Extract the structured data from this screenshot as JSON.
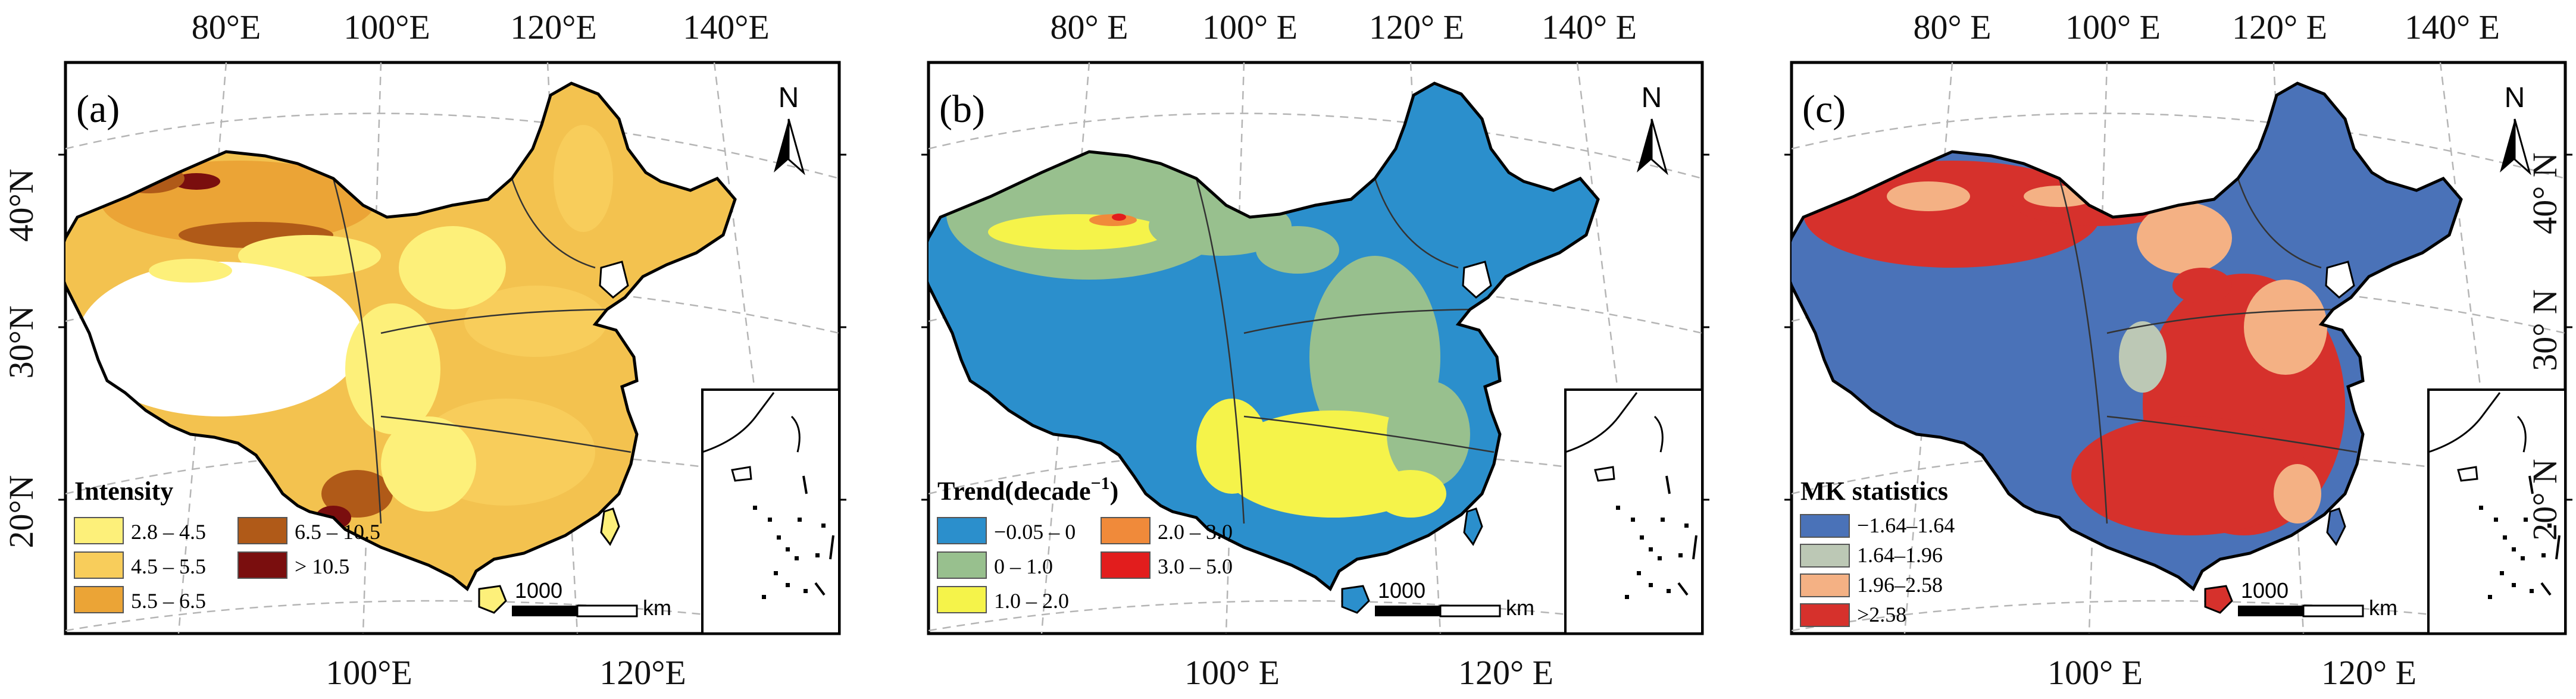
{
  "panels": [
    {
      "id": "a",
      "label": "(a)",
      "top_ticks": [
        "80°E",
        "100°E",
        "120°E",
        "140°E"
      ],
      "bottom_ticks": [
        "100°E",
        "120°E"
      ],
      "left_ticks": [
        "40°N",
        "30°N",
        "20°N"
      ],
      "right_ticks": [],
      "legend_title": "Intensity",
      "legend_title_sup": "",
      "legend_title_end": "",
      "legend": [
        {
          "label": "2.8 – 4.5",
          "color": "#fdf07a"
        },
        {
          "label": "4.5 – 5.5",
          "color": "#f8cd5b"
        },
        {
          "label": "5.5 – 6.5",
          "color": "#eba436"
        },
        {
          "label": "6.5 – 10.5",
          "color": "#b05a18"
        },
        {
          "label": "> 10.5",
          "color": "#7a0e0e"
        }
      ],
      "main_color": "#f3c24f",
      "north_label": "N",
      "scale_number": "1000",
      "scale_unit": "km"
    },
    {
      "id": "b",
      "label": "(b)",
      "top_ticks": [
        "80° E",
        "100° E",
        "120° E",
        "140° E"
      ],
      "bottom_ticks": [
        "100° E",
        "120° E"
      ],
      "left_ticks": [],
      "right_ticks": [],
      "legend_title": "Trend(decade",
      "legend_title_sup": "−1",
      "legend_title_end": ")",
      "legend": [
        {
          "label": "−0.05 – 0",
          "color": "#2b8fcc"
        },
        {
          "label": "0 – 1.0",
          "color": "#98c08e"
        },
        {
          "label": "1.0 – 2.0",
          "color": "#f5f34a"
        },
        {
          "label": "2.0 – 3.0",
          "color": "#f08a3a"
        },
        {
          "label": "3.0 – 5.0",
          "color": "#e21d1d"
        }
      ],
      "main_color": "#2b8fcc",
      "north_label": "N",
      "scale_number": "1000",
      "scale_unit": "km"
    },
    {
      "id": "c",
      "label": "(c)",
      "top_ticks": [
        "80° E",
        "100° E",
        "120° E",
        "140° E"
      ],
      "bottom_ticks": [
        "100° E",
        "120° E"
      ],
      "left_ticks": [],
      "right_ticks": [
        "40° N",
        "30° N",
        "20° N"
      ],
      "legend_title": "MK statistics",
      "legend_title_sup": "",
      "legend_title_end": "",
      "legend": [
        {
          "label": "−1.64–1.64",
          "color": "#4a72b8"
        },
        {
          "label": "1.64–1.96",
          "color": "#bcc8b5"
        },
        {
          "label": "1.96–2.58",
          "color": "#f4b184"
        },
        {
          "label": ">2.58",
          "color": "#d6312c"
        }
      ],
      "main_color": "#4a72b8",
      "north_label": "N",
      "scale_number": "1000",
      "scale_unit": "km"
    }
  ]
}
